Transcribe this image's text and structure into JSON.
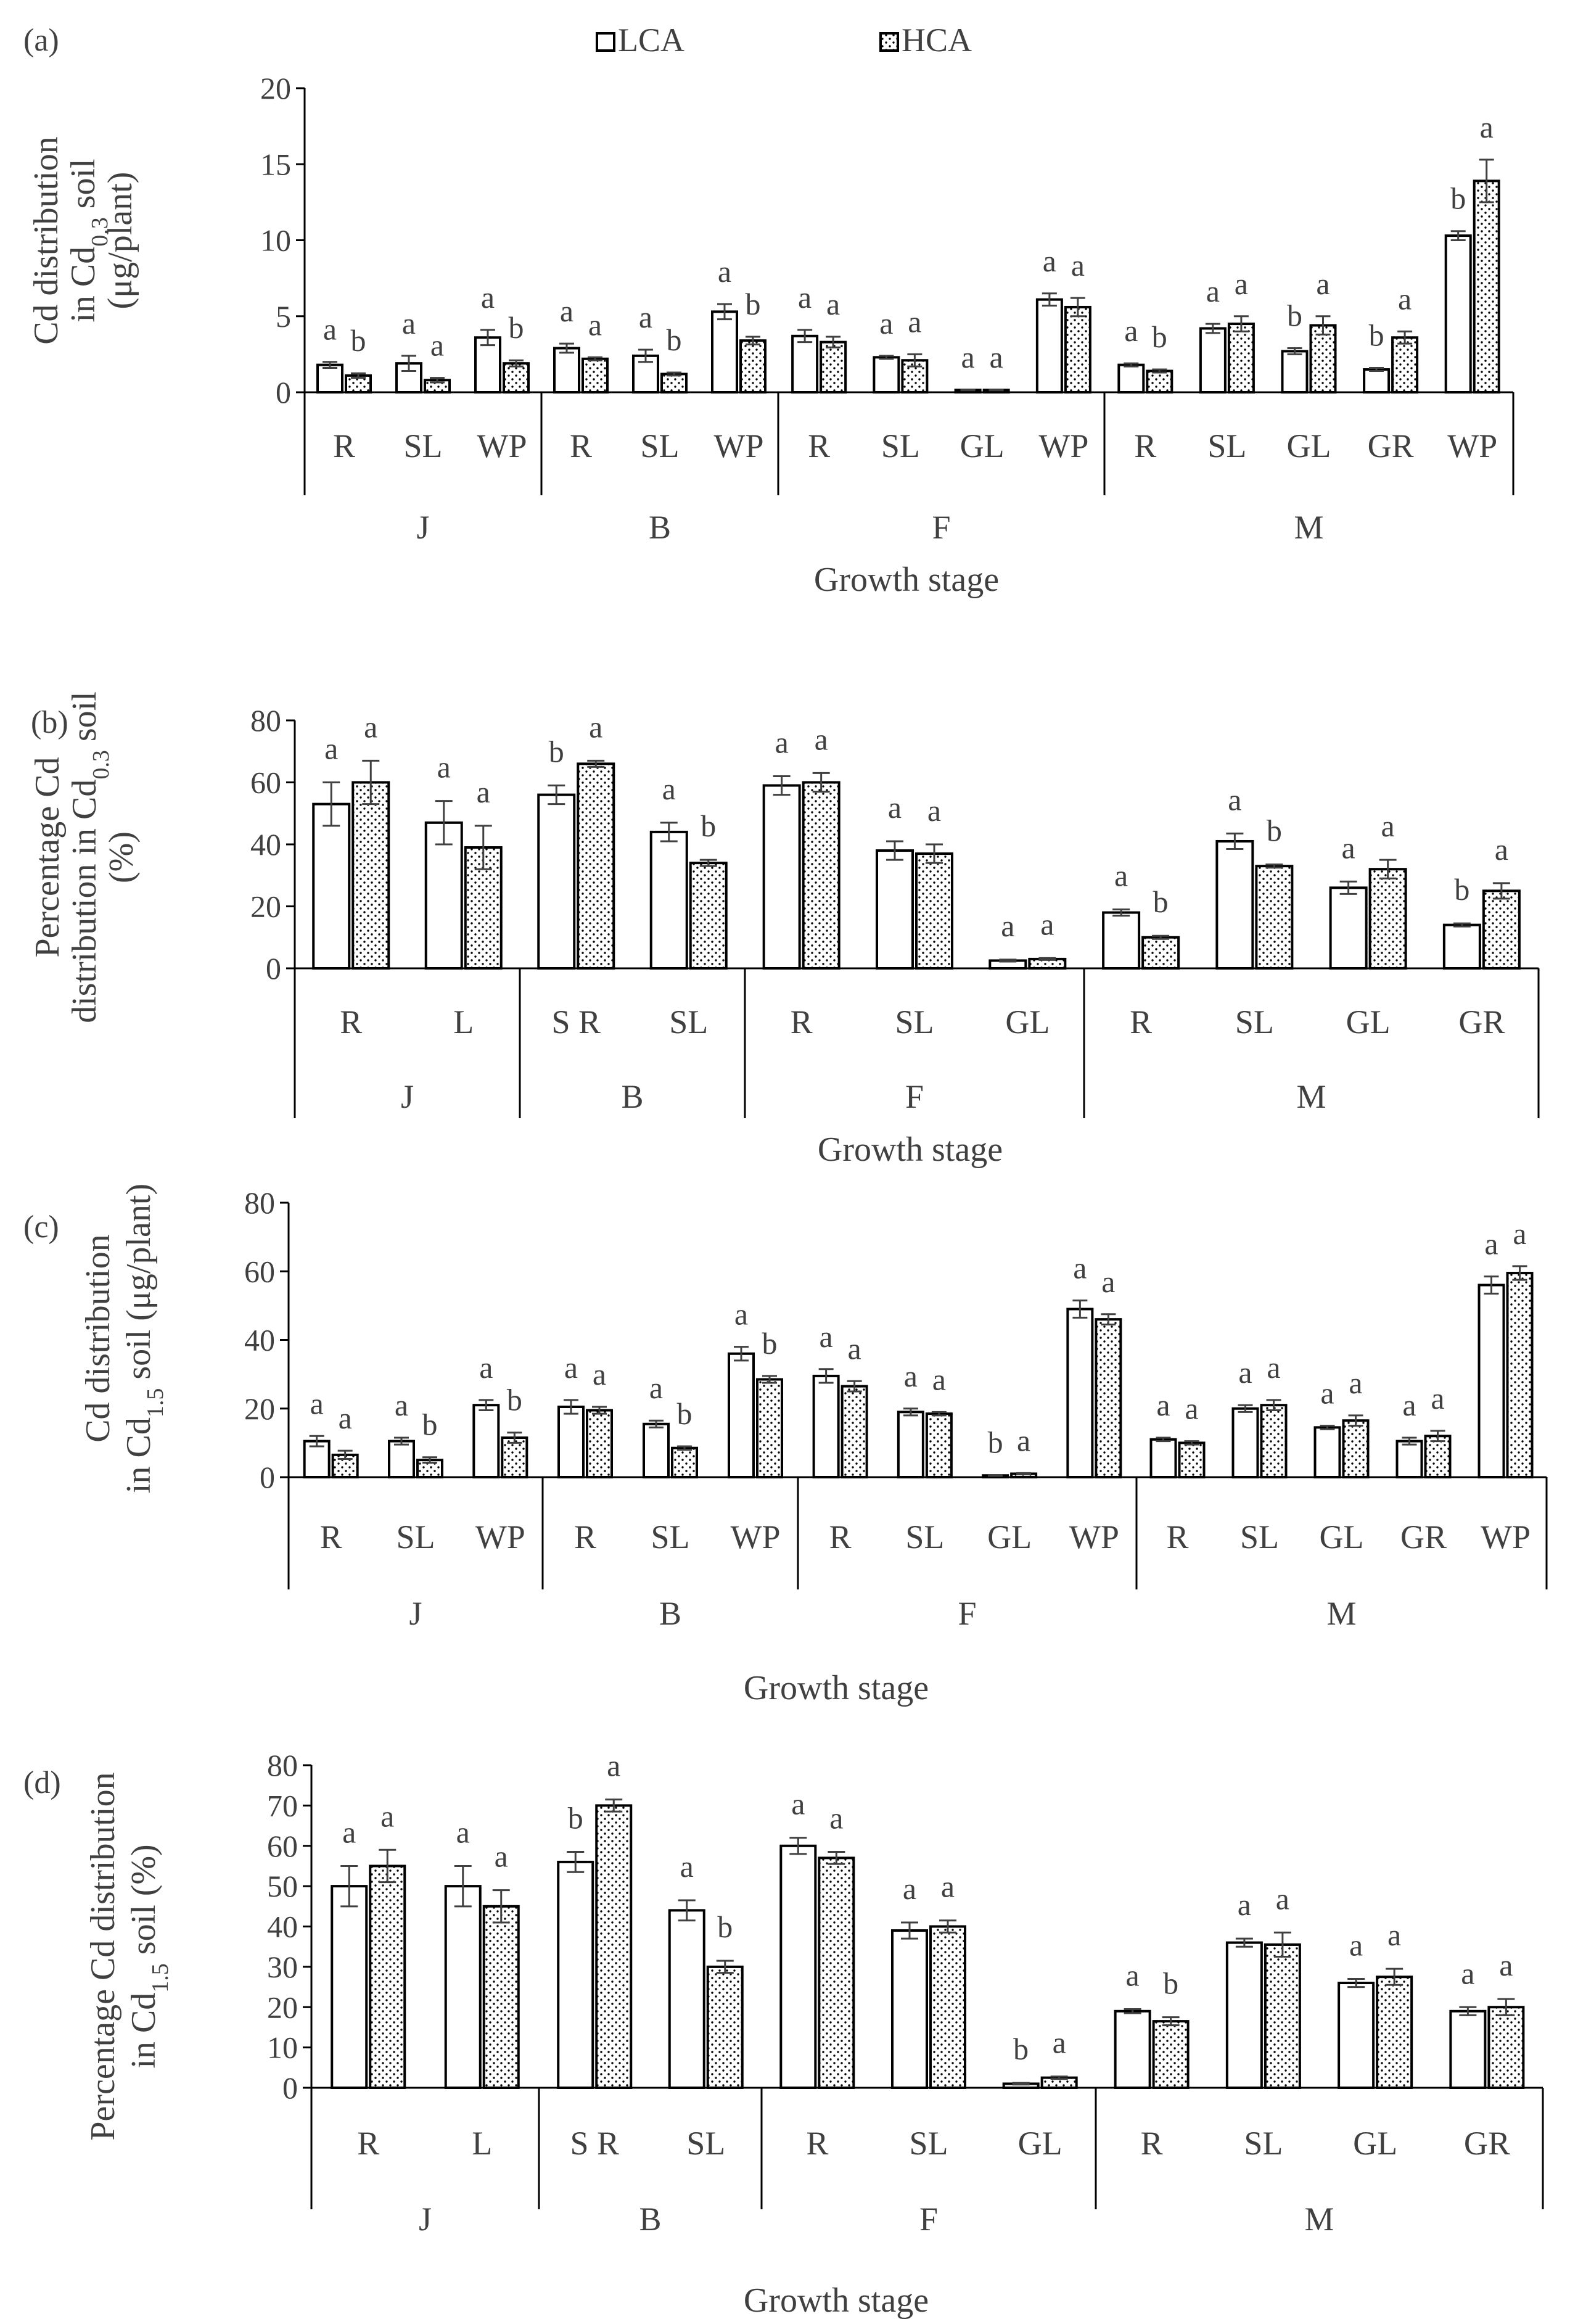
{
  "legend": {
    "items": [
      {
        "name": "LCA",
        "pattern": "open"
      },
      {
        "name": "HCA",
        "pattern": "dotted"
      }
    ]
  },
  "xlabel": "Growth stage",
  "colors": {
    "bar_stroke": "#000000",
    "dot": "#000000",
    "axis": "#000000",
    "text": "#404040"
  },
  "chart_data": [
    {
      "panel": "(a)",
      "type": "bar",
      "ylabel": "Cd distribution in Cd0.3 soil (μg/plant)",
      "ylabel_lines": [
        "Cd distribution",
        "in Cd0.3 soil",
        "(μg/plant)"
      ],
      "ylim": [
        0,
        20
      ],
      "yticks": [
        "0",
        "5",
        "10",
        "15",
        "20"
      ],
      "series_names": [
        "LCA",
        "HCA"
      ],
      "groups": [
        {
          "stage": "J",
          "organs": [
            {
              "label": "R",
              "values": [
                1.8,
                1.1
              ],
              "errors": [
                0.2,
                0.15
              ],
              "letters": [
                "a",
                "b"
              ]
            },
            {
              "label": "SL",
              "values": [
                1.9,
                0.8
              ],
              "errors": [
                0.5,
                0.15
              ],
              "letters": [
                "a",
                "a"
              ]
            },
            {
              "label": "WP",
              "values": [
                3.6,
                1.9
              ],
              "errors": [
                0.5,
                0.2
              ],
              "letters": [
                "a",
                "b"
              ]
            }
          ]
        },
        {
          "stage": "B",
          "organs": [
            {
              "label": "R",
              "values": [
                2.9,
                2.2
              ],
              "errors": [
                0.3,
                0.1
              ],
              "letters": [
                "a",
                "a"
              ]
            },
            {
              "label": "SL",
              "values": [
                2.4,
                1.2
              ],
              "errors": [
                0.4,
                0.1
              ],
              "letters": [
                "a",
                "b"
              ]
            },
            {
              "label": "WP",
              "values": [
                5.3,
                3.4
              ],
              "errors": [
                0.5,
                0.25
              ],
              "letters": [
                "a",
                "b"
              ]
            }
          ]
        },
        {
          "stage": "F",
          "organs": [
            {
              "label": "R",
              "values": [
                3.7,
                3.3
              ],
              "errors": [
                0.4,
                0.35
              ],
              "letters": [
                "a",
                "a"
              ]
            },
            {
              "label": "SL",
              "values": [
                2.3,
                2.1
              ],
              "errors": [
                0.1,
                0.4
              ],
              "letters": [
                "a",
                "a"
              ]
            },
            {
              "label": "GL",
              "values": [
                0.15,
                0.15
              ],
              "errors": [
                0.02,
                0.02
              ],
              "letters": [
                "a",
                "a"
              ]
            },
            {
              "label": "WP",
              "values": [
                6.1,
                5.6
              ],
              "errors": [
                0.4,
                0.6
              ],
              "letters": [
                "a",
                "a"
              ]
            }
          ]
        },
        {
          "stage": "M",
          "organs": [
            {
              "label": "R",
              "values": [
                1.8,
                1.4
              ],
              "errors": [
                0.1,
                0.1
              ],
              "letters": [
                "a",
                "b"
              ]
            },
            {
              "label": "SL",
              "values": [
                4.2,
                4.5
              ],
              "errors": [
                0.3,
                0.5
              ],
              "letters": [
                "a",
                "a"
              ]
            },
            {
              "label": "GL",
              "values": [
                2.7,
                4.4
              ],
              "errors": [
                0.2,
                0.6
              ],
              "letters": [
                "b",
                "a"
              ]
            },
            {
              "label": "GR",
              "values": [
                1.5,
                3.6
              ],
              "errors": [
                0.1,
                0.4
              ],
              "letters": [
                "b",
                "a"
              ]
            },
            {
              "label": "WP",
              "values": [
                10.3,
                13.9
              ],
              "errors": [
                0.3,
                1.4
              ],
              "letters": [
                "b",
                "a"
              ]
            }
          ]
        }
      ]
    },
    {
      "panel": "(b)",
      "type": "bar",
      "ylabel": "Percentage Cd distribution in Cd0.3 soil (%)",
      "ylabel_lines": [
        "Percentage Cd",
        "distribution in Cd0.3 soil",
        "(%)"
      ],
      "ylim": [
        0,
        80
      ],
      "yticks": [
        "0",
        "20",
        "40",
        "60",
        "80"
      ],
      "series_names": [
        "LCA",
        "HCA"
      ],
      "groups": [
        {
          "stage": "J",
          "organs": [
            {
              "label": "R",
              "values": [
                53,
                60
              ],
              "errors": [
                7,
                7
              ],
              "letters": [
                "a",
                "a"
              ]
            },
            {
              "label": "L",
              "values": [
                47,
                39
              ],
              "errors": [
                7,
                7
              ],
              "letters": [
                "a",
                "a"
              ]
            }
          ]
        },
        {
          "stage": "B",
          "organs": [
            {
              "label": "S R",
              "values": [
                56,
                66
              ],
              "errors": [
                3,
                1
              ],
              "letters": [
                "b",
                "a"
              ]
            },
            {
              "label": "SL",
              "values": [
                44,
                34
              ],
              "errors": [
                3,
                1
              ],
              "letters": [
                "a",
                "b"
              ]
            }
          ]
        },
        {
          "stage": "F",
          "organs": [
            {
              "label": "R",
              "values": [
                59,
                60
              ],
              "errors": [
                3,
                3
              ],
              "letters": [
                "a",
                "a"
              ]
            },
            {
              "label": "SL",
              "values": [
                38,
                37
              ],
              "errors": [
                3,
                3
              ],
              "letters": [
                "a",
                "a"
              ]
            },
            {
              "label": "GL",
              "values": [
                2.5,
                3
              ],
              "errors": [
                0.3,
                0.3
              ],
              "letters": [
                "a",
                "a"
              ]
            }
          ]
        },
        {
          "stage": "M",
          "organs": [
            {
              "label": "R",
              "values": [
                18,
                10
              ],
              "errors": [
                1,
                0.5
              ],
              "letters": [
                "a",
                "b"
              ]
            },
            {
              "label": "SL",
              "values": [
                41,
                33
              ],
              "errors": [
                2.5,
                0.5
              ],
              "letters": [
                "a",
                "b"
              ]
            },
            {
              "label": "GL",
              "values": [
                26,
                32
              ],
              "errors": [
                2,
                3
              ],
              "letters": [
                "a",
                "a"
              ]
            },
            {
              "label": "GR",
              "values": [
                14,
                25
              ],
              "errors": [
                0.5,
                2.5
              ],
              "letters": [
                "b",
                "a"
              ]
            }
          ]
        }
      ]
    },
    {
      "panel": "(c)",
      "type": "bar",
      "ylabel": "Cd distribution in Cd1.5 soil (μg/plant)",
      "ylabel_lines": [
        "Cd distribution",
        "in Cd1.5 soil (μg/plant)"
      ],
      "ylim": [
        0,
        80
      ],
      "yticks": [
        "0",
        "20",
        "40",
        "60",
        "80"
      ],
      "series_names": [
        "LCA",
        "HCA"
      ],
      "groups": [
        {
          "stage": "J",
          "organs": [
            {
              "label": "R",
              "values": [
                10.5,
                6.5
              ],
              "errors": [
                1.5,
                1.2
              ],
              "letters": [
                "a",
                "a"
              ]
            },
            {
              "label": "SL",
              "values": [
                10.5,
                5
              ],
              "errors": [
                1,
                0.8
              ],
              "letters": [
                "a",
                "b"
              ]
            },
            {
              "label": "WP",
              "values": [
                21,
                11.5
              ],
              "errors": [
                1.5,
                1.5
              ],
              "letters": [
                "a",
                "b"
              ]
            }
          ]
        },
        {
          "stage": "B",
          "organs": [
            {
              "label": "R",
              "values": [
                20.5,
                19.5
              ],
              "errors": [
                2,
                1
              ],
              "letters": [
                "a",
                "a"
              ]
            },
            {
              "label": "SL",
              "values": [
                15.5,
                8.5
              ],
              "errors": [
                1,
                0.5
              ],
              "letters": [
                "a",
                "b"
              ]
            },
            {
              "label": "WP",
              "values": [
                36,
                28.5
              ],
              "errors": [
                2,
                1
              ],
              "letters": [
                "a",
                "b"
              ]
            }
          ]
        },
        {
          "stage": "F",
          "organs": [
            {
              "label": "R",
              "values": [
                29.5,
                26.5
              ],
              "errors": [
                2,
                1.5
              ],
              "letters": [
                "a",
                "a"
              ]
            },
            {
              "label": "SL",
              "values": [
                19,
                18.5
              ],
              "errors": [
                1,
                0.5
              ],
              "letters": [
                "a",
                "a"
              ]
            },
            {
              "label": "GL",
              "values": [
                0.5,
                1
              ],
              "errors": [
                0.1,
                0.2
              ],
              "letters": [
                "b",
                "a"
              ]
            },
            {
              "label": "WP",
              "values": [
                49,
                46
              ],
              "errors": [
                2.5,
                1.5
              ],
              "letters": [
                "a",
                "a"
              ]
            }
          ]
        },
        {
          "stage": "M",
          "organs": [
            {
              "label": "R",
              "values": [
                11,
                10
              ],
              "errors": [
                0.5,
                0.5
              ],
              "letters": [
                "a",
                "a"
              ]
            },
            {
              "label": "SL",
              "values": [
                20,
                21
              ],
              "errors": [
                1,
                1.5
              ],
              "letters": [
                "a",
                "a"
              ]
            },
            {
              "label": "GL",
              "values": [
                14.5,
                16.5
              ],
              "errors": [
                0.5,
                1.5
              ],
              "letters": [
                "a",
                "a"
              ]
            },
            {
              "label": "GR",
              "values": [
                10.5,
                12
              ],
              "errors": [
                1,
                1.5
              ],
              "letters": [
                "a",
                "a"
              ]
            },
            {
              "label": "WP",
              "values": [
                56,
                59.5
              ],
              "errors": [
                2.5,
                2
              ],
              "letters": [
                "a",
                "a"
              ]
            }
          ]
        }
      ]
    },
    {
      "panel": "(d)",
      "type": "bar",
      "ylabel": "Percentage Cd distribution in Cd1.5 soil (%)",
      "ylabel_lines": [
        "Percentage Cd distribution",
        "in Cd1.5 soil (%)"
      ],
      "ylim": [
        0,
        80
      ],
      "yticks": [
        "0",
        "10",
        "20",
        "30",
        "40",
        "50",
        "60",
        "70",
        "80"
      ],
      "series_names": [
        "LCA",
        "HCA"
      ],
      "groups": [
        {
          "stage": "J",
          "organs": [
            {
              "label": "R",
              "values": [
                50,
                55
              ],
              "errors": [
                5,
                4
              ],
              "letters": [
                "a",
                "a"
              ]
            },
            {
              "label": "L",
              "values": [
                50,
                45
              ],
              "errors": [
                5,
                4
              ],
              "letters": [
                "a",
                "a"
              ]
            }
          ]
        },
        {
          "stage": "B",
          "organs": [
            {
              "label": "S R",
              "values": [
                56,
                70
              ],
              "errors": [
                2.5,
                1.5
              ],
              "letters": [
                "b",
                "a"
              ]
            },
            {
              "label": "SL",
              "values": [
                44,
                30
              ],
              "errors": [
                2.5,
                1.5
              ],
              "letters": [
                "a",
                "b"
              ]
            }
          ]
        },
        {
          "stage": "F",
          "organs": [
            {
              "label": "R",
              "values": [
                60,
                57
              ],
              "errors": [
                2,
                1.5
              ],
              "letters": [
                "a",
                "a"
              ]
            },
            {
              "label": "SL",
              "values": [
                39,
                40
              ],
              "errors": [
                2,
                1.5
              ],
              "letters": [
                "a",
                "a"
              ]
            },
            {
              "label": "GL",
              "values": [
                1,
                2.5
              ],
              "errors": [
                0.2,
                0.3
              ],
              "letters": [
                "b",
                "a"
              ]
            }
          ]
        },
        {
          "stage": "M",
          "organs": [
            {
              "label": "R",
              "values": [
                19,
                16.5
              ],
              "errors": [
                0.5,
                1
              ],
              "letters": [
                "a",
                "b"
              ]
            },
            {
              "label": "SL",
              "values": [
                36,
                35.5
              ],
              "errors": [
                1,
                3
              ],
              "letters": [
                "a",
                "a"
              ]
            },
            {
              "label": "GL",
              "values": [
                26,
                27.5
              ],
              "errors": [
                1,
                2
              ],
              "letters": [
                "a",
                "a"
              ]
            },
            {
              "label": "GR",
              "values": [
                19,
                20
              ],
              "errors": [
                1,
                2
              ],
              "letters": [
                "a",
                "a"
              ]
            }
          ]
        }
      ]
    }
  ]
}
